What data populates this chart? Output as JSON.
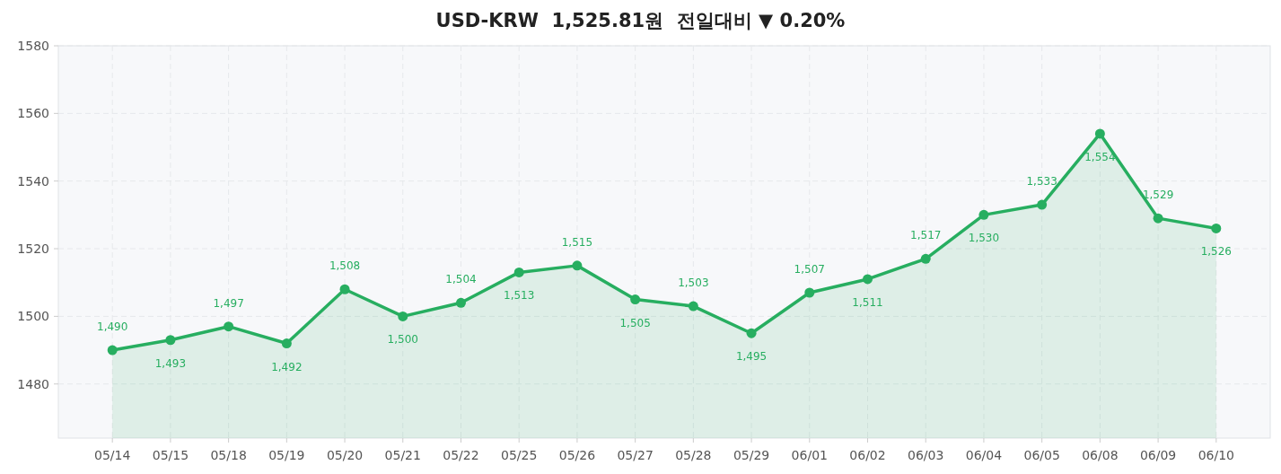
{
  "chart_data": {
    "type": "area",
    "title": "USD-KRW  1,525.81원  전일대비 ▼ 0.20%",
    "categories": [
      "05/14",
      "05/15",
      "05/18",
      "05/19",
      "05/20",
      "05/21",
      "05/22",
      "05/25",
      "05/26",
      "05/27",
      "05/28",
      "05/29",
      "06/01",
      "06/02",
      "06/03",
      "06/04",
      "06/05",
      "06/08",
      "06/09",
      "06/10"
    ],
    "series": [
      {
        "color": "#27ae60",
        "values": [
          1490,
          1493,
          1497,
          1492,
          1508,
          1500,
          1504,
          1513,
          1515,
          1505,
          1503,
          1495,
          1507,
          1511,
          1517,
          1530,
          1533,
          1554,
          1529,
          1526
        ],
        "value_labels": [
          "1,490",
          "1,493",
          "1,497",
          "1,492",
          "1,508",
          "1,500",
          "1,504",
          "1,513",
          "1,515",
          "1,505",
          "1,503",
          "1,495",
          "1,507",
          "1,511",
          "1,517",
          "1,530",
          "1,533",
          "1,554",
          "1,529",
          "1,526"
        ]
      }
    ],
    "ylim": [
      1464,
      1580
    ],
    "yticks": [
      1480,
      1500,
      1520,
      1540,
      1560,
      1580
    ],
    "grid": true,
    "marker": "circle"
  }
}
